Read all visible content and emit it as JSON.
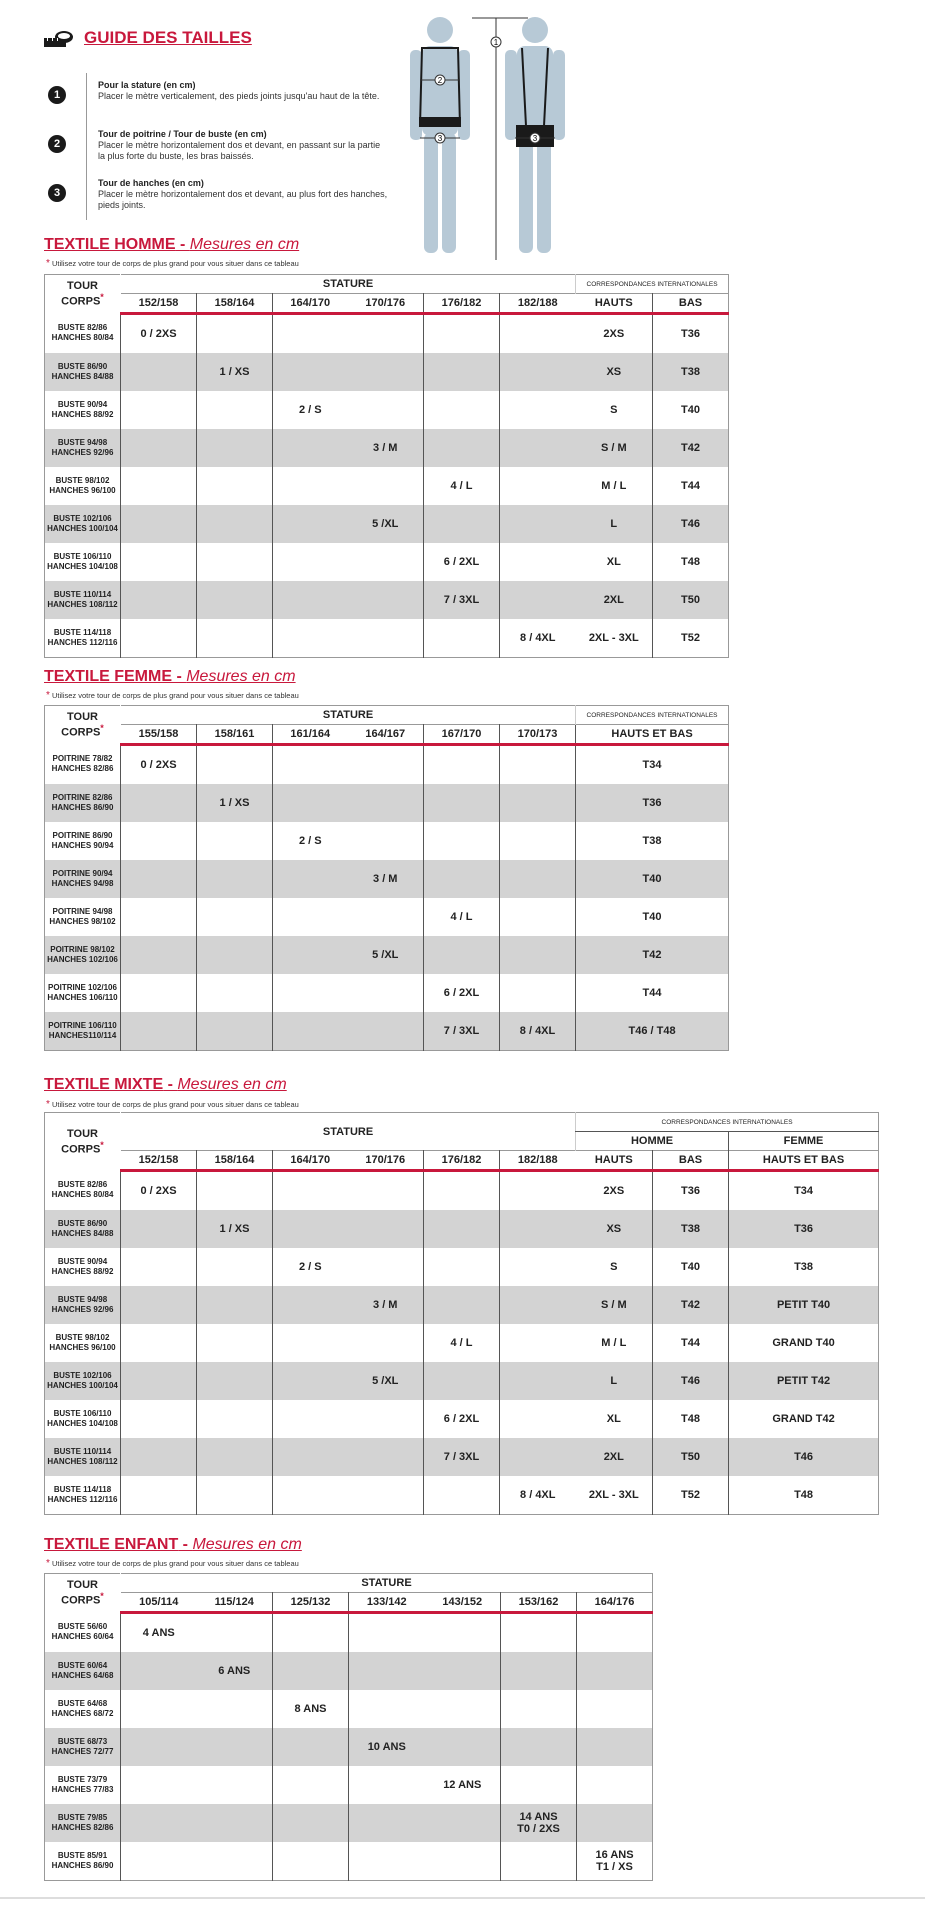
{
  "header": {
    "title": "GUIDE DES TAILLES",
    "instructions": [
      {
        "num": "1",
        "title": "Pour la stature (en cm)",
        "text": "Placer le mètre verticalement, des pieds joints jusqu'au haut de la tête."
      },
      {
        "num": "2",
        "title": "Tour de poitrine / Tour de buste (en cm)",
        "text": "Placer le mètre horizontalement dos et devant, en passant sur la partie la plus forte du buste, les bras baissés."
      },
      {
        "num": "3",
        "title": "Tour de hanches (en cm)",
        "text": "Placer le mètre horizontalement dos et devant, au plus fort des hanches, pieds joints."
      }
    ]
  },
  "figure": {
    "markers": [
      "1",
      "2",
      "3",
      "3"
    ],
    "skin_color": "#b7c9d6",
    "garment_color": "#1a1a1a"
  },
  "colors": {
    "accent": "#c8183c",
    "row_alt": "#d3d3d3"
  },
  "common": {
    "subtitle": "Mesures en cm",
    "note": "Utilisez votre tour de corps de plus grand pour vous situer dans ce tableau",
    "tour_corps": "TOUR CORPS",
    "stature": "STATURE",
    "correspondances": "CORRESPONDANCES INTERNATIONALES",
    "homme": "HOMME",
    "femme": "FEMME"
  },
  "tables": {
    "homme": {
      "title": "TEXTILE HOMME",
      "columns": [
        "152/158",
        "158/164",
        "164/170",
        "170/176",
        "176/182",
        "182/188",
        "HAUTS",
        "BAS"
      ],
      "rows": [
        {
          "label": [
            "BUSTE 82/86",
            "HANCHES 80/84"
          ],
          "cells": [
            "0 / 2XS",
            "",
            "",
            "",
            "",
            "",
            "2XS",
            "T36"
          ]
        },
        {
          "label": [
            "BUSTE 86/90",
            "HANCHES 84/88"
          ],
          "cells": [
            "",
            "1 / XS",
            "",
            "",
            "",
            "",
            "XS",
            "T38"
          ]
        },
        {
          "label": [
            "BUSTE 90/94",
            "HANCHES 88/92"
          ],
          "cells": [
            "",
            "",
            "2 / S",
            "",
            "",
            "",
            "S",
            "T40"
          ]
        },
        {
          "label": [
            "BUSTE 94/98",
            "HANCHES 92/96"
          ],
          "cells": [
            "",
            "",
            "",
            "3 / M",
            "",
            "",
            "S / M",
            "T42"
          ]
        },
        {
          "label": [
            "BUSTE 98/102",
            "HANCHES 96/100"
          ],
          "cells": [
            "",
            "",
            "",
            "",
            "4 / L",
            "",
            "M / L",
            "T44"
          ]
        },
        {
          "label": [
            "BUSTE 102/106",
            "HANCHES 100/104"
          ],
          "cells": [
            "",
            "",
            "",
            "5 /XL",
            "",
            "",
            "L",
            "T46"
          ]
        },
        {
          "label": [
            "BUSTE 106/110",
            "HANCHES 104/108"
          ],
          "cells": [
            "",
            "",
            "",
            "",
            "6 / 2XL",
            "",
            "XL",
            "T48"
          ]
        },
        {
          "label": [
            "BUSTE 110/114",
            "HANCHES 108/112"
          ],
          "cells": [
            "",
            "",
            "",
            "",
            "7 / 3XL",
            "",
            "2XL",
            "T50"
          ]
        },
        {
          "label": [
            "BUSTE 114/118",
            "HANCHES 112/116"
          ],
          "cells": [
            "",
            "",
            "",
            "",
            "",
            "8 / 4XL",
            "2XL - 3XL",
            "T52"
          ]
        }
      ]
    },
    "femme": {
      "title": "TEXTILE FEMME",
      "columns": [
        "155/158",
        "158/161",
        "161/164",
        "164/167",
        "167/170",
        "170/173",
        "HAUTS ET BAS"
      ],
      "rows": [
        {
          "label": [
            "POITRINE 78/82",
            "HANCHES 82/86"
          ],
          "cells": [
            "0 / 2XS",
            "",
            "",
            "",
            "",
            "",
            "T34"
          ]
        },
        {
          "label": [
            "POITRINE 82/86",
            "HANCHES 86/90"
          ],
          "cells": [
            "",
            "1 / XS",
            "",
            "",
            "",
            "",
            "T36"
          ]
        },
        {
          "label": [
            "POITRINE 86/90",
            "HANCHES 90/94"
          ],
          "cells": [
            "",
            "",
            "2 / S",
            "",
            "",
            "",
            "T38"
          ]
        },
        {
          "label": [
            "POITRINE 90/94",
            "HANCHES 94/98"
          ],
          "cells": [
            "",
            "",
            "",
            "3 / M",
            "",
            "",
            "T40"
          ]
        },
        {
          "label": [
            "POITRINE 94/98",
            "HANCHES 98/102"
          ],
          "cells": [
            "",
            "",
            "",
            "",
            "4 / L",
            "",
            "T40"
          ]
        },
        {
          "label": [
            "POITRINE 98/102",
            "HANCHES 102/106"
          ],
          "cells": [
            "",
            "",
            "",
            "5 /XL",
            "",
            "",
            "T42"
          ]
        },
        {
          "label": [
            "POITRINE 102/106",
            "HANCHES 106/110"
          ],
          "cells": [
            "",
            "",
            "",
            "",
            "6 / 2XL",
            "",
            "T44"
          ]
        },
        {
          "label": [
            "POITRINE 106/110",
            "HANCHES110/114"
          ],
          "cells": [
            "",
            "",
            "",
            "",
            "7 / 3XL",
            "8 / 4XL",
            "T46 / T48"
          ]
        }
      ]
    },
    "mixte": {
      "title": "TEXTILE MIXTE",
      "columns": [
        "152/158",
        "158/164",
        "164/170",
        "170/176",
        "176/182",
        "182/188",
        "HAUTS",
        "BAS",
        "HAUTS ET BAS"
      ],
      "rows": [
        {
          "label": [
            "BUSTE 82/86",
            "HANCHES 80/84"
          ],
          "cells": [
            "0 / 2XS",
            "",
            "",
            "",
            "",
            "",
            "2XS",
            "T36",
            "T34"
          ]
        },
        {
          "label": [
            "BUSTE 86/90",
            "HANCHES 84/88"
          ],
          "cells": [
            "",
            "1 / XS",
            "",
            "",
            "",
            "",
            "XS",
            "T38",
            "T36"
          ]
        },
        {
          "label": [
            "BUSTE 90/94",
            "HANCHES 88/92"
          ],
          "cells": [
            "",
            "",
            "2 / S",
            "",
            "",
            "",
            "S",
            "T40",
            "T38"
          ]
        },
        {
          "label": [
            "BUSTE 94/98",
            "HANCHES 92/96"
          ],
          "cells": [
            "",
            "",
            "",
            "3 / M",
            "",
            "",
            "S / M",
            "T42",
            "PETIT T40"
          ]
        },
        {
          "label": [
            "BUSTE 98/102",
            "HANCHES 96/100"
          ],
          "cells": [
            "",
            "",
            "",
            "",
            "4 / L",
            "",
            "M / L",
            "T44",
            "GRAND T40"
          ]
        },
        {
          "label": [
            "BUSTE 102/106",
            "HANCHES 100/104"
          ],
          "cells": [
            "",
            "",
            "",
            "5 /XL",
            "",
            "",
            "L",
            "T46",
            "PETIT T42"
          ]
        },
        {
          "label": [
            "BUSTE 106/110",
            "HANCHES 104/108"
          ],
          "cells": [
            "",
            "",
            "",
            "",
            "6 / 2XL",
            "",
            "XL",
            "T48",
            "GRAND T42"
          ]
        },
        {
          "label": [
            "BUSTE 110/114",
            "HANCHES 108/112"
          ],
          "cells": [
            "",
            "",
            "",
            "",
            "7 / 3XL",
            "",
            "2XL",
            "T50",
            "T46"
          ]
        },
        {
          "label": [
            "BUSTE 114/118",
            "HANCHES 112/116"
          ],
          "cells": [
            "",
            "",
            "",
            "",
            "",
            "8 / 4XL",
            "2XL - 3XL",
            "T52",
            "T48"
          ]
        }
      ]
    },
    "enfant": {
      "title": "TEXTILE ENFANT",
      "columns": [
        "105/114",
        "115/124",
        "125/132",
        "133/142",
        "143/152",
        "153/162",
        "164/176"
      ],
      "rows": [
        {
          "label": [
            "BUSTE 56/60",
            "HANCHES 60/64"
          ],
          "cells": [
            "4 ANS",
            "",
            "",
            "",
            "",
            "",
            ""
          ]
        },
        {
          "label": [
            "BUSTE 60/64",
            "HANCHES 64/68"
          ],
          "cells": [
            "",
            "6 ANS",
            "",
            "",
            "",
            "",
            ""
          ]
        },
        {
          "label": [
            "BUSTE 64/68",
            "HANCHES 68/72"
          ],
          "cells": [
            "",
            "",
            "8 ANS",
            "",
            "",
            "",
            ""
          ]
        },
        {
          "label": [
            "BUSTE 68/73",
            "HANCHES 72/77"
          ],
          "cells": [
            "",
            "",
            "",
            "10 ANS",
            "",
            "",
            ""
          ]
        },
        {
          "label": [
            "BUSTE 73/79",
            "HANCHES 77/83"
          ],
          "cells": [
            "",
            "",
            "",
            "",
            "12 ANS",
            "",
            ""
          ]
        },
        {
          "label": [
            "BUSTE 79/85",
            "HANCHES 82/86"
          ],
          "cells": [
            "",
            "",
            "",
            "",
            "",
            "14 ANS\nT0 / 2XS",
            ""
          ]
        },
        {
          "label": [
            "BUSTE 85/91",
            "HANCHES 86/90"
          ],
          "cells": [
            "",
            "",
            "",
            "",
            "",
            "",
            "16 ANS\nT1 / XS"
          ]
        }
      ]
    }
  }
}
